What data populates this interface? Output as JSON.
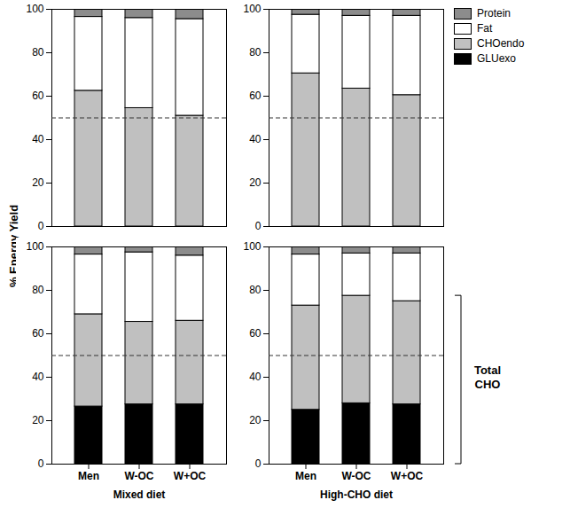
{
  "chart_data": [
    {
      "type": "bar",
      "stacked": true,
      "tick_labels": "y",
      "ylabel": "% Energy Yield",
      "categories": [
        "Men",
        "W-OC",
        "W+OC"
      ],
      "series": [
        {
          "name": "GLUexo",
          "color": "#000000",
          "values": [
            0,
            0,
            0
          ]
        },
        {
          "name": "CHOendo",
          "color": "#c0c0c0",
          "values": [
            62.5,
            54.5,
            51
          ]
        },
        {
          "name": "Fat",
          "color": "#ffffff",
          "values": [
            34,
            41.5,
            44.5
          ]
        },
        {
          "name": "Protein",
          "color": "#8c8c8c",
          "values": [
            3.5,
            4,
            4.5
          ]
        }
      ],
      "ylim": [
        0,
        100
      ],
      "yticks": [
        0,
        20,
        40,
        60,
        80,
        100
      ],
      "reference_line": 50
    },
    {
      "type": "bar",
      "stacked": true,
      "tick_labels": "y",
      "legend": "right",
      "categories": [
        "Men",
        "W-OC",
        "W+OC"
      ],
      "series": [
        {
          "name": "GLUexo",
          "color": "#000000",
          "values": [
            0,
            0,
            0
          ]
        },
        {
          "name": "CHOendo",
          "color": "#c0c0c0",
          "values": [
            70.5,
            63.5,
            60.5
          ]
        },
        {
          "name": "Fat",
          "color": "#ffffff",
          "values": [
            27,
            33.5,
            36.5
          ]
        },
        {
          "name": "Protein",
          "color": "#8c8c8c",
          "values": [
            2.5,
            3,
            3
          ]
        }
      ],
      "ylim": [
        0,
        100
      ],
      "yticks": [
        0,
        20,
        40,
        60,
        80,
        100
      ],
      "reference_line": 50
    },
    {
      "type": "bar",
      "stacked": true,
      "xlabel": "Mixed diet",
      "categories": [
        "Men",
        "W-OC",
        "W+OC"
      ],
      "series": [
        {
          "name": "GLUexo",
          "color": "#000000",
          "values": [
            26.5,
            27.5,
            27.5
          ]
        },
        {
          "name": "CHOendo",
          "color": "#c0c0c0",
          "values": [
            42.5,
            38,
            38.5
          ]
        },
        {
          "name": "Fat",
          "color": "#ffffff",
          "values": [
            27.5,
            32,
            30
          ]
        },
        {
          "name": "Protein",
          "color": "#8c8c8c",
          "values": [
            3.5,
            2.5,
            4
          ]
        }
      ],
      "ylim": [
        0,
        100
      ],
      "yticks": [
        0,
        20,
        40,
        60,
        80,
        100
      ],
      "reference_line": 50
    },
    {
      "type": "bar",
      "stacked": true,
      "xlabel": "High-CHO diet",
      "annotation": "Total CHO",
      "categories": [
        "Men",
        "W-OC",
        "W+OC"
      ],
      "series": [
        {
          "name": "GLUexo",
          "color": "#000000",
          "values": [
            25,
            28,
            27.5
          ]
        },
        {
          "name": "CHOendo",
          "color": "#c0c0c0",
          "values": [
            48,
            49.5,
            47.5
          ]
        },
        {
          "name": "Fat",
          "color": "#ffffff",
          "values": [
            23.5,
            19.5,
            22
          ]
        },
        {
          "name": "Protein",
          "color": "#8c8c8c",
          "values": [
            3.5,
            3,
            3
          ]
        }
      ],
      "ylim": [
        0,
        100
      ],
      "yticks": [
        0,
        20,
        40,
        60,
        80,
        100
      ],
      "reference_line": 50
    }
  ]
}
